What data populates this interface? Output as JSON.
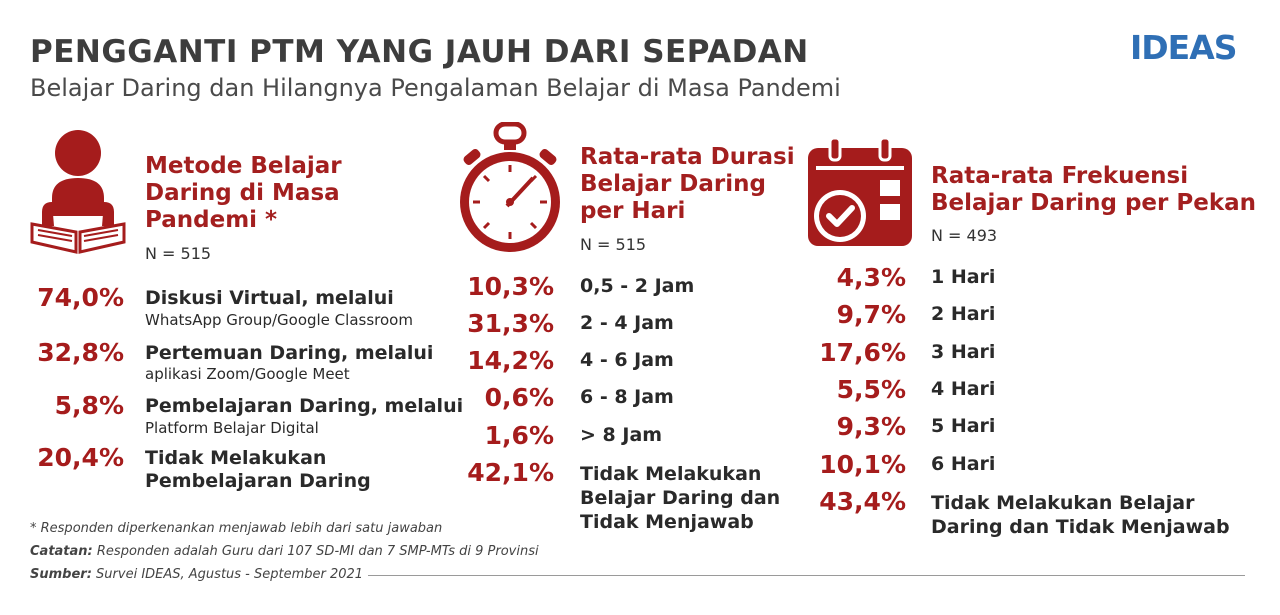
{
  "header": {
    "title": "PENGGANTI PTM YANG JAUH DARI SEPADAN",
    "subtitle": "Belajar Daring dan Hilangnya Pengalaman Belajar di Masa Pandemi"
  },
  "logo": {
    "text": "IDEAS",
    "color": "#2f6fb5"
  },
  "colors": {
    "accent": "#a51c1c",
    "title": "#3d3d3d"
  },
  "chart_data": [
    {
      "type": "table",
      "title_lines": [
        "Metode Belajar",
        "Daring di Masa",
        "Pandemi *"
      ],
      "n": "N = 515",
      "icon": "person-reading-book-icon",
      "rows": [
        {
          "pct": "74,0%",
          "value": 74.0,
          "label": "Diskusi Virtual, melalui",
          "sublabel": "WhatsApp Group/Google Classroom"
        },
        {
          "pct": "32,8%",
          "value": 32.8,
          "label": "Pertemuan Daring, melalui",
          "sublabel": "aplikasi Zoom/Google Meet"
        },
        {
          "pct": "5,8%",
          "value": 5.8,
          "label": "Pembelajaran Daring, melalui",
          "sublabel": "Platform Belajar Digital"
        },
        {
          "pct": "20,4%",
          "value": 20.4,
          "label": "Tidak Melakukan",
          "sublabel": "Pembelajaran Daring"
        }
      ]
    },
    {
      "type": "table",
      "title_lines": [
        "Rata-rata Durasi",
        "Belajar Daring",
        "per Hari"
      ],
      "n": "N = 515",
      "icon": "stopwatch-icon",
      "rows": [
        {
          "pct": "10,3%",
          "value": 10.3,
          "label": "0,5 - 2 Jam"
        },
        {
          "pct": "31,3%",
          "value": 31.3,
          "label": "2 - 4 Jam"
        },
        {
          "pct": "14,2%",
          "value": 14.2,
          "label": "4 - 6 Jam"
        },
        {
          "pct": "0,6%",
          "value": 0.6,
          "label": "6 - 8 Jam"
        },
        {
          "pct": "1,6%",
          "value": 1.6,
          "label": "> 8 Jam"
        },
        {
          "pct": "42,1%",
          "value": 42.1,
          "label_lines": [
            "Tidak Melakukan",
            "Belajar Daring dan",
            "Tidak Menjawab"
          ]
        }
      ]
    },
    {
      "type": "table",
      "title_lines": [
        "Rata-rata Frekuensi",
        "Belajar Daring per Pekan"
      ],
      "n": "N = 493",
      "icon": "calendar-check-icon",
      "rows": [
        {
          "pct": "4,3%",
          "value": 4.3,
          "label": "1 Hari"
        },
        {
          "pct": "9,7%",
          "value": 9.7,
          "label": "2 Hari"
        },
        {
          "pct": "17,6%",
          "value": 17.6,
          "label": "3 Hari"
        },
        {
          "pct": "5,5%",
          "value": 5.5,
          "label": "4 Hari"
        },
        {
          "pct": "9,3%",
          "value": 9.3,
          "label": "5 Hari"
        },
        {
          "pct": "10,1%",
          "value": 10.1,
          "label": "6 Hari"
        },
        {
          "pct": "43,4%",
          "value": 43.4,
          "label_lines": [
            "Tidak Melakukan Belajar",
            "Daring dan Tidak Menjawab"
          ]
        }
      ]
    }
  ],
  "footer": {
    "note1": "* Responden diperkenankan menjawab lebih dari satu jawaban",
    "note2_label": "Catatan:",
    "note2": "Responden adalah Guru dari 107 SD-MI dan 7 SMP-MTs di 9 Provinsi",
    "note3_label": "Sumber:",
    "note3": "Survei IDEAS, Agustus - September 2021"
  }
}
